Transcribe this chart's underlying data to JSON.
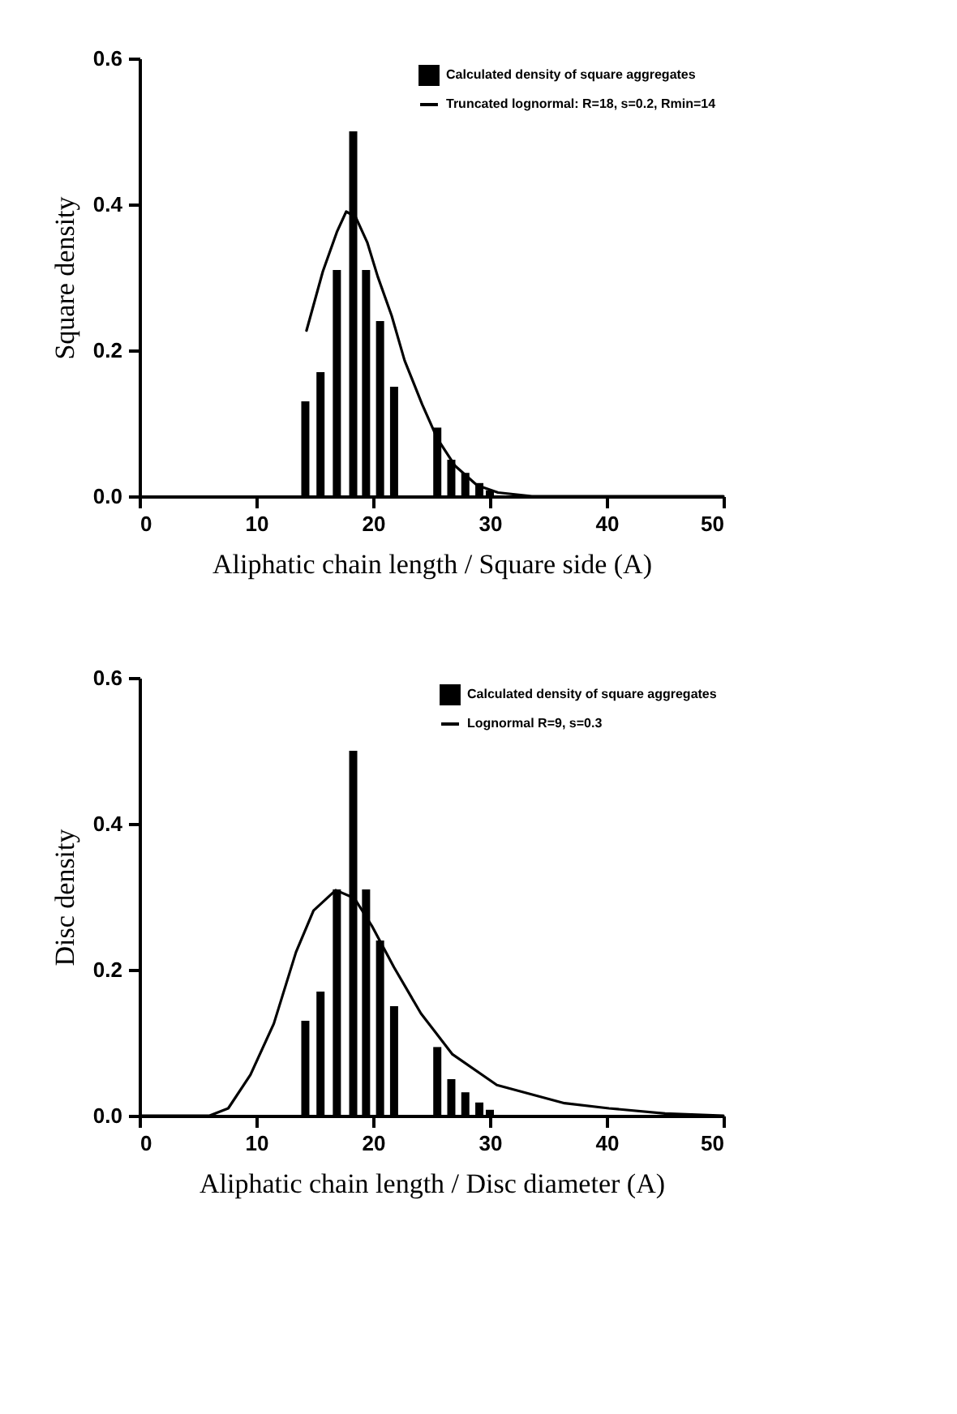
{
  "chart_data": [
    {
      "type": "bar",
      "xlabel": "Aliphatic chain length / Square side (A)",
      "ylabel": "Square density",
      "xlim": [
        0,
        50
      ],
      "xticks": [
        0,
        10,
        20,
        30,
        40,
        50
      ],
      "ylim": [
        0,
        0.6
      ],
      "yticks": [
        {
          "value": 0,
          "label": "0.0"
        },
        0.2,
        0.4,
        0.6
      ],
      "grid": false,
      "legend": "top right",
      "series": [
        {
          "name": "Calculated density of square aggregates",
          "color": "#000000",
          "x": [
            14.2,
            15.5,
            16.9,
            18.3,
            19.4,
            20.6,
            21.8,
            25.5,
            26.7,
            27.9,
            29.1,
            30.0
          ],
          "values": [
            0.13,
            0.17,
            0.31,
            0.5,
            0.31,
            0.24,
            0.15,
            0.094,
            0.05,
            0.032,
            0.018,
            0.008
          ]
        },
        {
          "type": "line",
          "name": "Truncated lognormal: R=18, s=0.2, Rmin=14",
          "color": "#000000",
          "x": [
            14.3,
            15.7,
            16.9,
            17.7,
            18.5,
            19.5,
            20.4,
            21.6,
            22.7,
            24.2,
            25.5,
            27,
            28.9,
            30.7,
            33.6,
            40,
            50
          ],
          "values": [
            0.227,
            0.308,
            0.362,
            0.39,
            0.383,
            0.348,
            0.301,
            0.247,
            0.186,
            0.126,
            0.079,
            0.042,
            0.015,
            0.005,
            0,
            0,
            0
          ]
        }
      ]
    },
    {
      "type": "bar",
      "xlabel": "Aliphatic chain length / Disc diameter (A)",
      "ylabel": "Disc density",
      "xlim": [
        0,
        50
      ],
      "xticks": [
        0,
        10,
        20,
        30,
        40,
        50
      ],
      "ylim": [
        0,
        0.6
      ],
      "yticks": [
        {
          "value": 0,
          "label": "0.0"
        },
        0.2,
        0.4,
        0.6
      ],
      "grid": false,
      "legend": "top right",
      "series": [
        {
          "name": "Calculated density of square aggregates",
          "color": "#000000",
          "x": [
            14.2,
            15.5,
            16.9,
            18.3,
            19.4,
            20.6,
            21.8,
            25.5,
            26.7,
            27.9,
            29.1,
            30.0
          ],
          "values": [
            0.13,
            0.17,
            0.31,
            0.5,
            0.31,
            0.24,
            0.15,
            0.094,
            0.05,
            0.032,
            0.018,
            0.008
          ]
        },
        {
          "type": "line",
          "name": "Lognormal R=9, s=0.3",
          "color": "#000000",
          "x": [
            0,
            6,
            7.6,
            9.5,
            11.5,
            13.4,
            14.9,
            16.8,
            18.4,
            19.9,
            21.8,
            24.1,
            26.8,
            30.6,
            36.4,
            40.2,
            45,
            50
          ],
          "values": [
            0,
            0,
            0.01,
            0.056,
            0.126,
            0.224,
            0.281,
            0.309,
            0.298,
            0.26,
            0.203,
            0.14,
            0.084,
            0.042,
            0.017,
            0.01,
            0.003,
            0
          ]
        }
      ]
    }
  ]
}
